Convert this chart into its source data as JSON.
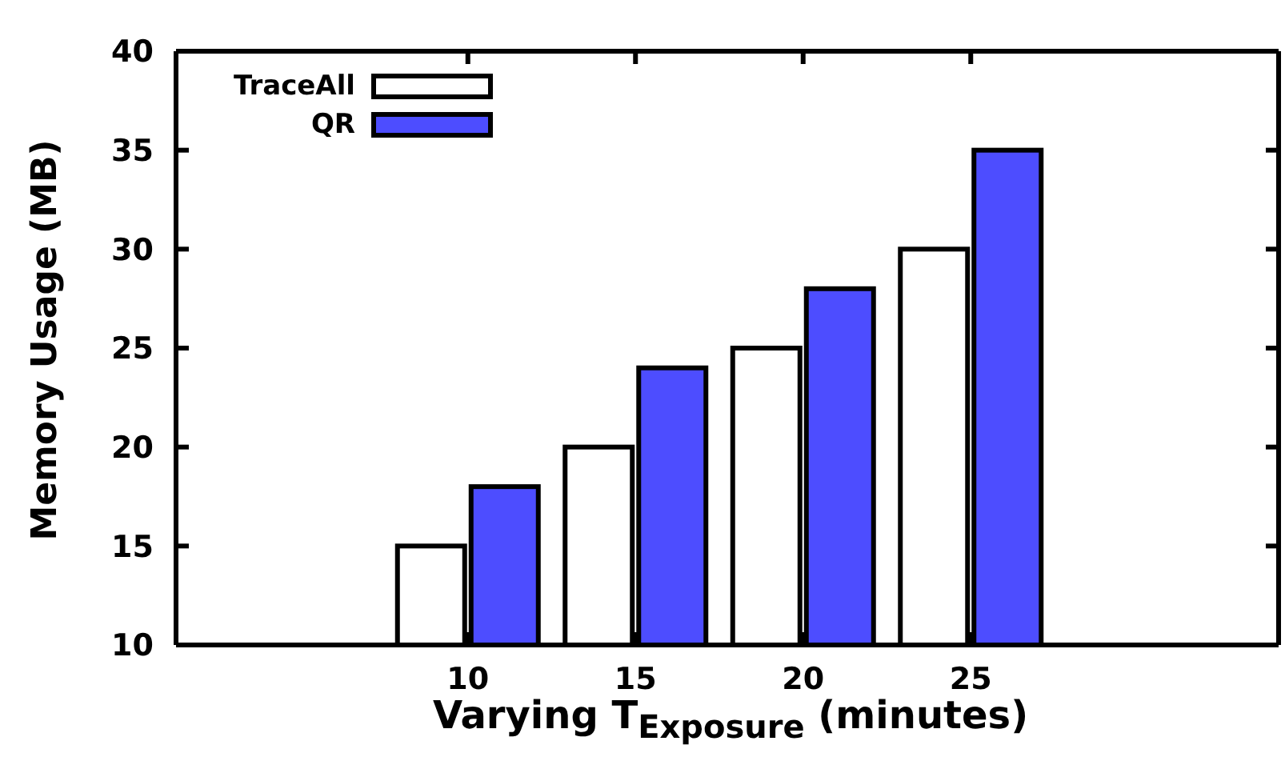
{
  "chart_data": {
    "type": "bar",
    "xlabel": "Varying T$_{Exposure}$ (minutes)",
    "ylabel": "Memory Usage (MB)",
    "categories": [
      "10",
      "15",
      "20",
      "25"
    ],
    "series": [
      {
        "name": "TraceAll",
        "color": "#ffffff",
        "values": [
          15,
          20,
          25,
          30
        ]
      },
      {
        "name": "QR",
        "color": "#4d4dff",
        "values": [
          18,
          24,
          28,
          35
        ]
      }
    ],
    "ylim": [
      10,
      40
    ],
    "yticks": [
      10,
      15,
      20,
      25,
      30,
      35,
      40
    ],
    "legend": "top left"
  }
}
